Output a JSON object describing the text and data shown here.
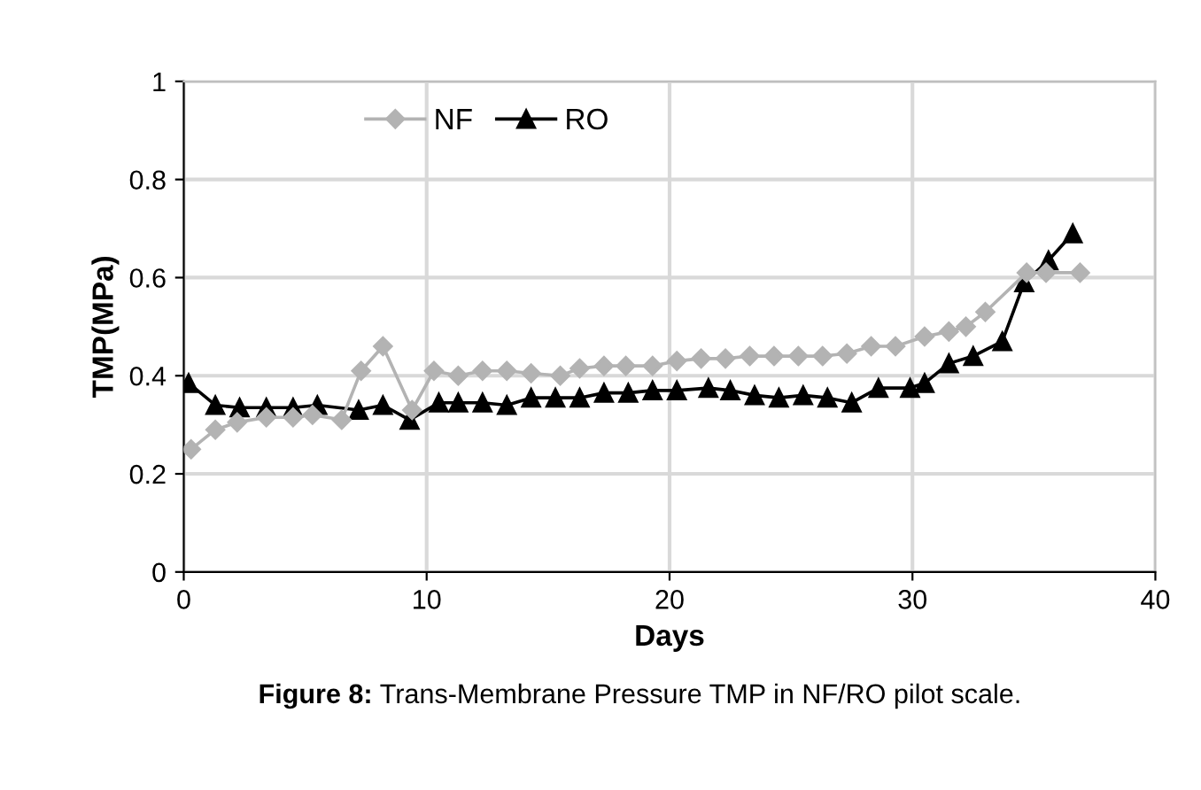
{
  "chart_data": {
    "type": "line",
    "xlabel": "Days",
    "ylabel": "TMP(MPa)",
    "xlim": [
      0,
      40
    ],
    "xticks": [
      0,
      10,
      20,
      30,
      40
    ],
    "ylim": [
      0,
      1
    ],
    "yticks": [
      0,
      0.2,
      0.4,
      0.6,
      0.8,
      1
    ],
    "grid": true,
    "legend": "top left",
    "annotations": [
      "Figure 8: Trans-Membrane Pressure TMP in NF/RO pilot scale."
    ],
    "series": [
      {
        "name": "NF",
        "color": "#b3b3b3",
        "marker": "diamond",
        "x": [
          0.3,
          1.3,
          2.2,
          3.4,
          4.5,
          5.3,
          6.5,
          7.3,
          8.2,
          9.4,
          10.3,
          11.3,
          12.3,
          13.3,
          14.3,
          15.5,
          16.3,
          17.3,
          18.2,
          19.3,
          20.3,
          21.3,
          22.3,
          23.3,
          24.3,
          25.3,
          26.3,
          27.3,
          28.3,
          29.3,
          30.5,
          31.5,
          32.2,
          33.0,
          34.7,
          35.5,
          36.9
        ],
        "values": [
          0.25,
          0.29,
          0.305,
          0.315,
          0.315,
          0.32,
          0.31,
          0.41,
          0.46,
          0.33,
          0.41,
          0.4,
          0.41,
          0.41,
          0.405,
          0.4,
          0.415,
          0.42,
          0.42,
          0.42,
          0.43,
          0.435,
          0.435,
          0.44,
          0.44,
          0.44,
          0.44,
          0.445,
          0.46,
          0.46,
          0.48,
          0.49,
          0.5,
          0.53,
          0.61,
          0.61,
          0.61
        ]
      },
      {
        "name": "RO",
        "color": "#000000",
        "marker": "triangle",
        "x": [
          0.2,
          1.3,
          2.3,
          3.4,
          4.5,
          5.5,
          7.2,
          8.2,
          9.3,
          10.5,
          11.3,
          12.3,
          13.3,
          14.3,
          15.3,
          16.3,
          17.3,
          18.3,
          19.3,
          20.3,
          21.6,
          22.5,
          23.5,
          24.5,
          25.5,
          26.5,
          27.5,
          28.6,
          29.9,
          30.5,
          31.5,
          32.5,
          33.7,
          34.6,
          35.6,
          36.6
        ],
        "values": [
          0.385,
          0.34,
          0.335,
          0.335,
          0.335,
          0.34,
          0.33,
          0.34,
          0.31,
          0.345,
          0.345,
          0.345,
          0.34,
          0.355,
          0.355,
          0.355,
          0.365,
          0.365,
          0.37,
          0.37,
          0.375,
          0.37,
          0.36,
          0.355,
          0.36,
          0.355,
          0.345,
          0.375,
          0.375,
          0.385,
          0.425,
          0.44,
          0.47,
          0.59,
          0.635,
          0.69
        ]
      }
    ]
  }
}
